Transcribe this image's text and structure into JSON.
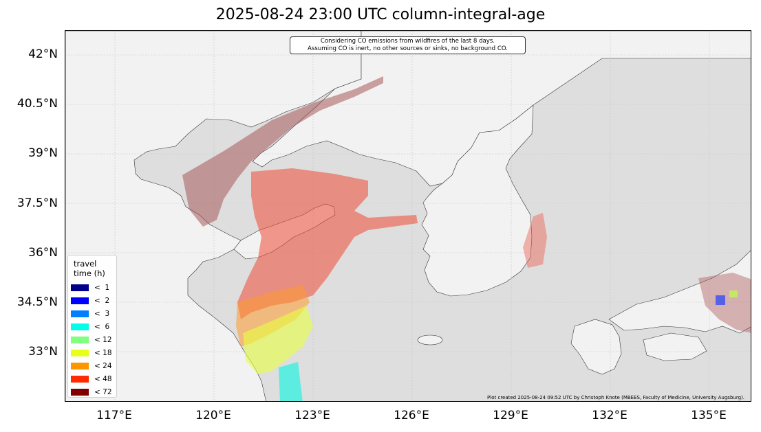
{
  "title": "2025-08-24 23:00 UTC column-integral-age",
  "note_lines": [
    "Considering CO emissions from wildfires of the last 8 days.",
    "Assuming CO is inert, no other sources or sinks, no background CO."
  ],
  "credit": "Plot created 2025-08-24 09:52 UTC by Christoph Knote (MBEES, Faculty of Medicine, University Augsburg).",
  "lat_labels": [
    "42°N",
    "40.5°N",
    "39°N",
    "37.5°N",
    "36°N",
    "34.5°N",
    "33°N"
  ],
  "lon_labels": [
    "117°E",
    "120°E",
    "123°E",
    "126°E",
    "129°E",
    "132°E",
    "135°E"
  ],
  "legend": {
    "title_lines": [
      "travel",
      "time (h)"
    ],
    "items": [
      {
        "label": "<  1",
        "color": "#00008b"
      },
      {
        "label": "<  2",
        "color": "#0000ff"
      },
      {
        "label": "<  3",
        "color": "#0080ff"
      },
      {
        "label": "<  6",
        "color": "#00ffe8"
      },
      {
        "label": "< 12",
        "color": "#80ff80"
      },
      {
        "label": "< 18",
        "color": "#e8ff1a"
      },
      {
        "label": "< 24",
        "color": "#ff9600"
      },
      {
        "label": "< 48",
        "color": "#ff2a00"
      },
      {
        "label": "< 72",
        "color": "#800000"
      }
    ]
  },
  "colors": {
    "land": "#f2f2f2",
    "sea": "#dedede",
    "plume_old": "#b07070",
    "plume_mid": "#ee5a45"
  }
}
